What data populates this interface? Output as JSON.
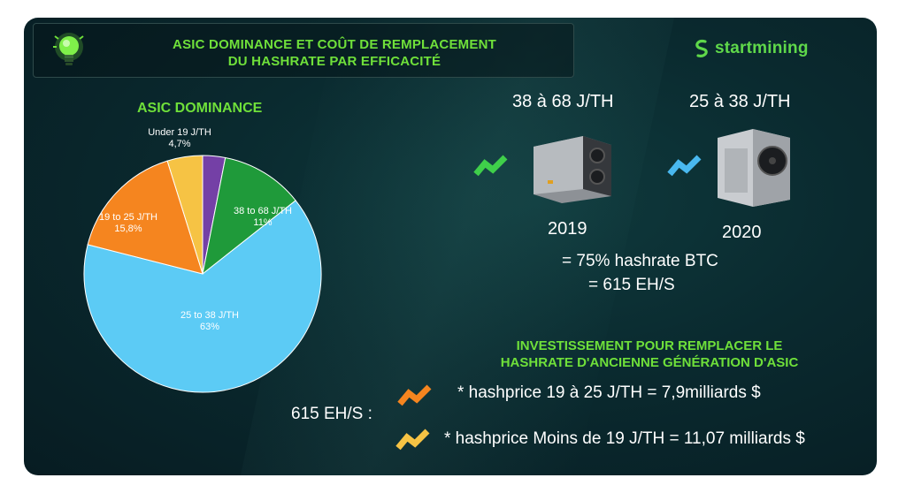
{
  "header": {
    "title_line1": "ASIC DOMINANCE ET COÛT DE REMPLACEMENT",
    "title_line2": "DU HASHRATE PAR EFFICACITÉ",
    "logo": "startmining"
  },
  "colors": {
    "green_accent": "#6fe03a",
    "background": "#0a2a2f"
  },
  "chart_data": {
    "type": "pie",
    "title": "ASIC DOMINANCE",
    "slices": [
      {
        "label": "Under 19 J/TH",
        "value": 4.7,
        "display": "4,7%",
        "color": "#f6c344"
      },
      {
        "label": "",
        "value": 3.0,
        "display": "",
        "color": "#7440a6"
      },
      {
        "label": "38 to 68 J/TH",
        "value": 11,
        "display": "11%",
        "color": "#1f9a3a"
      },
      {
        "label": "25 to 38 J/TH",
        "value": 63,
        "display": "63%",
        "color": "#5ccbf5"
      },
      {
        "label": "19 to 25 J/TH",
        "value": 15.8,
        "display": "15,8%",
        "color": "#f5851f"
      }
    ]
  },
  "miners": [
    {
      "efficiency": "38 à 68 J/TH",
      "year": "2019",
      "arrow_color": "#3fcf4a"
    },
    {
      "efficiency": "25 à 38 J/TH",
      "year": "2020",
      "arrow_color": "#49b8ef"
    }
  ],
  "summary": {
    "line1": "= 75% hashrate BTC",
    "line2": "= 615 EH/S"
  },
  "investment": {
    "title_line1": "INVESTISSEMENT POUR REMPLACER LE",
    "title_line2": "HASHRATE D'ANCIENNE GÉNÉRATION D'ASIC",
    "total_label": "615 EH/S :",
    "items": [
      {
        "text": "* hashprice 19 à 25 J/TH = 7,9milliards $",
        "arrow_color": "#f5851f"
      },
      {
        "text": "* hashprice Moins de 19 J/TH = 11,07 milliards $",
        "arrow_color": "#f6c344"
      }
    ]
  }
}
